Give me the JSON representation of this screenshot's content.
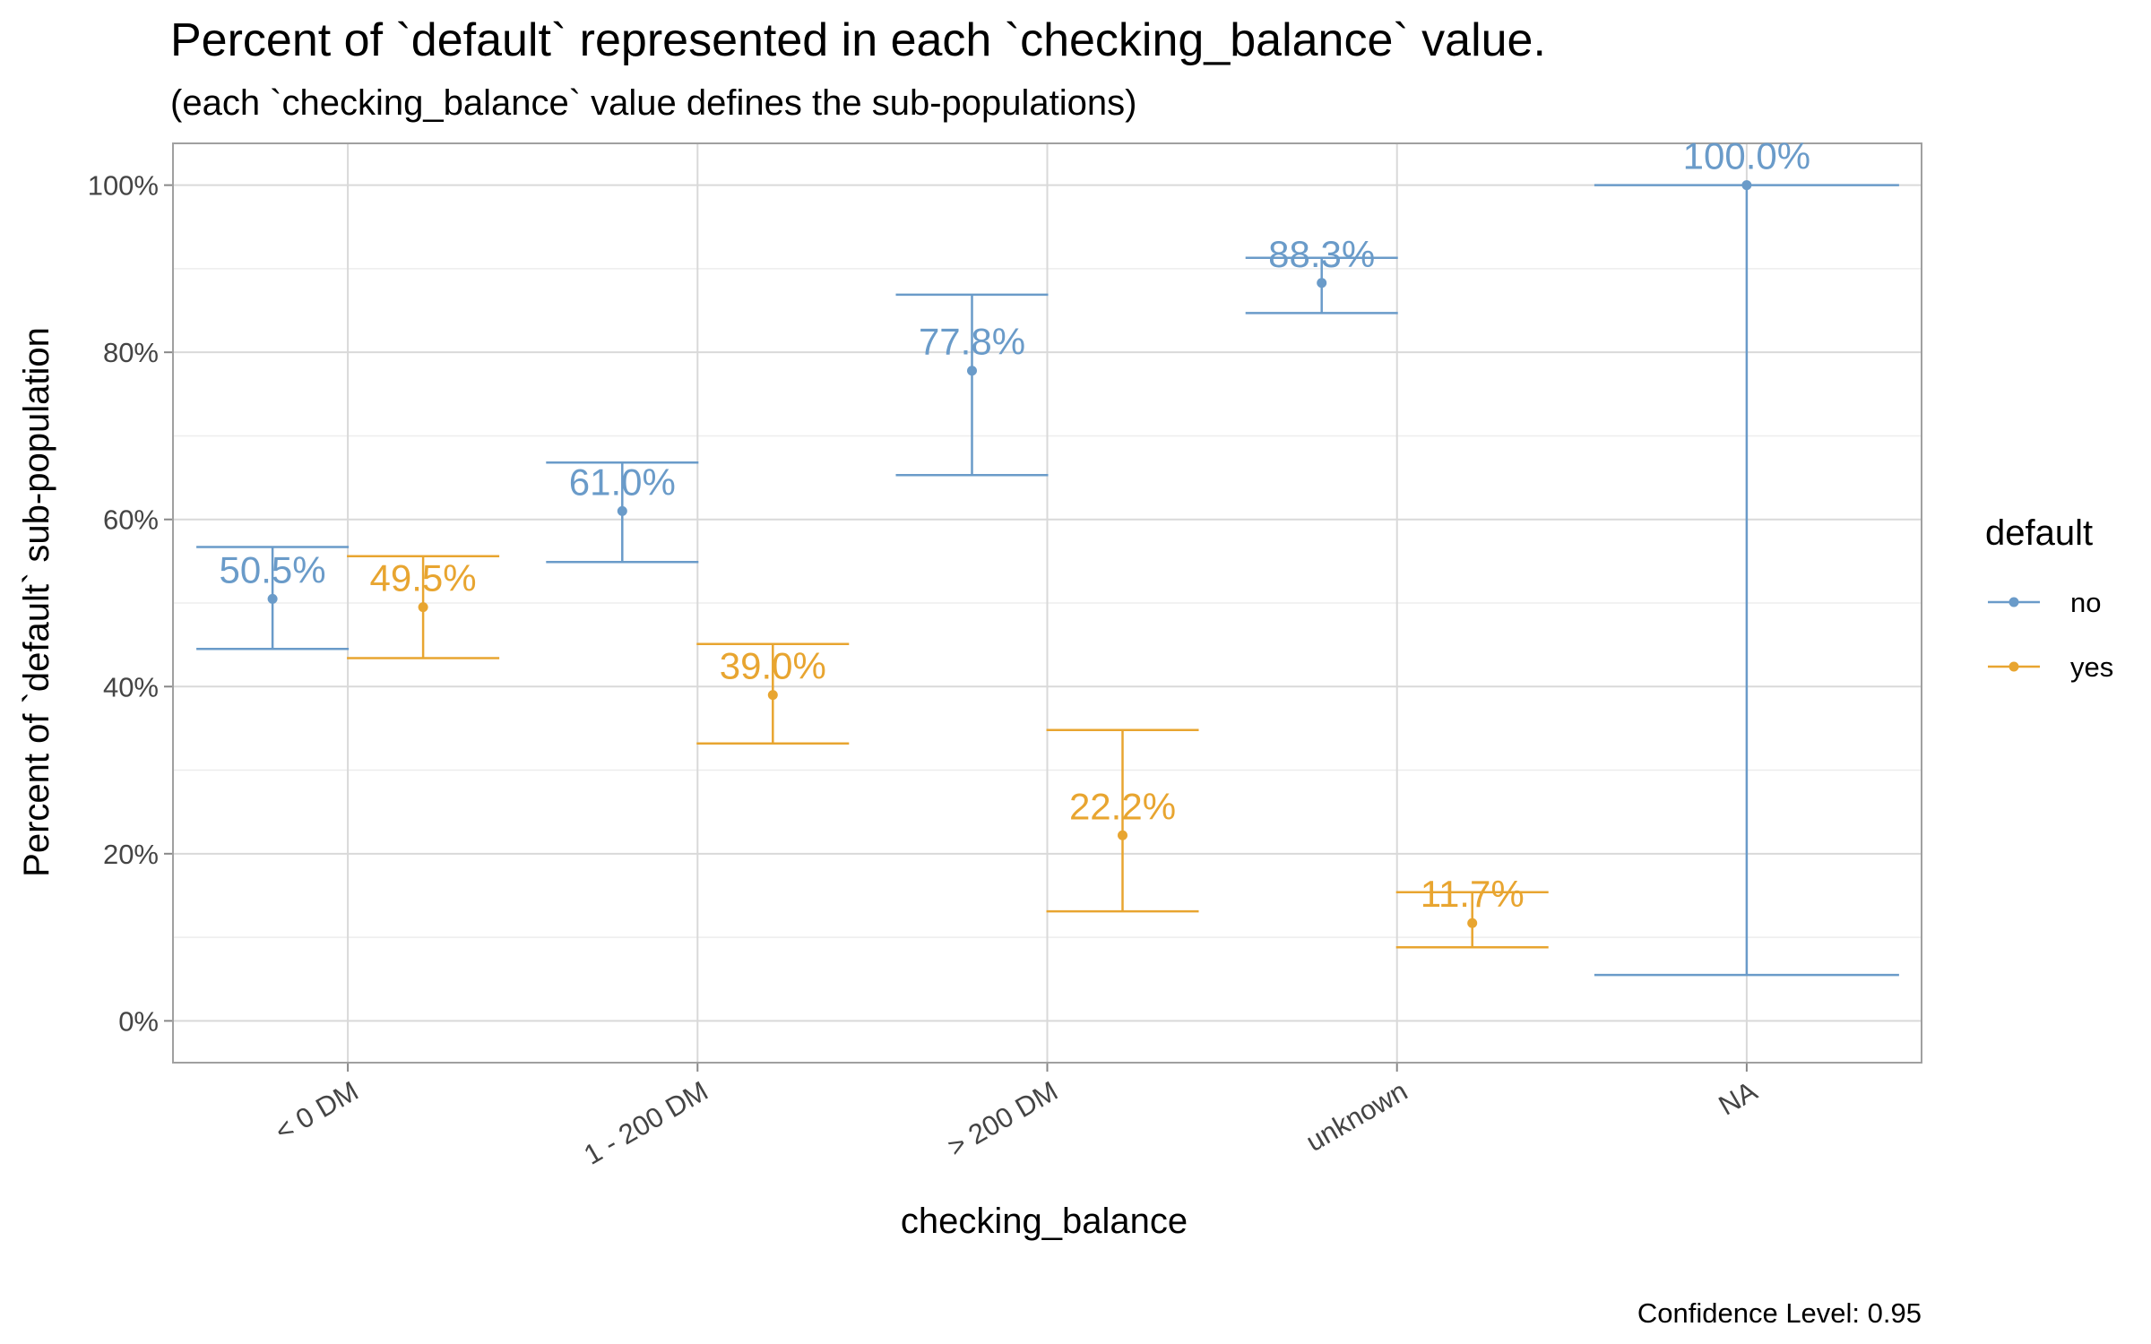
{
  "chart_data": {
    "type": "errorbar",
    "title": "Percent of `default` represented in each `checking_balance` value.",
    "subtitle": "(each `checking_balance` value defines the sub-populations)",
    "xlabel": "checking_balance",
    "ylabel": "Percent of `default` sub-population",
    "caption": "Confidence Level: 0.95",
    "categories": [
      "< 0 DM",
      "1 - 200 DM",
      "> 200 DM",
      "unknown",
      "NA"
    ],
    "ylim": [
      -0.05,
      1.05
    ],
    "y_ticks": [
      0,
      0.2,
      0.4,
      0.6,
      0.8,
      1.0
    ],
    "y_tick_labels": [
      "0%",
      "20%",
      "40%",
      "60%",
      "80%",
      "100%"
    ],
    "grid": true,
    "legend": {
      "title": "default",
      "position": "right"
    },
    "series": [
      {
        "name": "no",
        "color": "#6a9bc9",
        "points": [
          {
            "category": "< 0 DM",
            "value": 0.505,
            "lower": 0.445,
            "upper": 0.567,
            "label": "50.5%"
          },
          {
            "category": "1 - 200 DM",
            "value": 0.61,
            "lower": 0.549,
            "upper": 0.668,
            "label": "61.0%"
          },
          {
            "category": "> 200 DM",
            "value": 0.778,
            "lower": 0.653,
            "upper": 0.869,
            "label": "77.8%"
          },
          {
            "category": "unknown",
            "value": 0.883,
            "lower": 0.847,
            "upper": 0.913,
            "label": "88.3%"
          },
          {
            "category": "NA",
            "value": 1.0,
            "lower": 0.055,
            "upper": 1.0,
            "label": "100.0%"
          }
        ]
      },
      {
        "name": "yes",
        "color": "#e8a530",
        "points": [
          {
            "category": "< 0 DM",
            "value": 0.495,
            "lower": 0.434,
            "upper": 0.556,
            "label": "49.5%"
          },
          {
            "category": "1 - 200 DM",
            "value": 0.39,
            "lower": 0.332,
            "upper": 0.451,
            "label": "39.0%"
          },
          {
            "category": "> 200 DM",
            "value": 0.222,
            "lower": 0.131,
            "upper": 0.348,
            "label": "22.2%"
          },
          {
            "category": "unknown",
            "value": 0.117,
            "lower": 0.088,
            "upper": 0.154,
            "label": "11.7%"
          }
        ]
      }
    ]
  }
}
